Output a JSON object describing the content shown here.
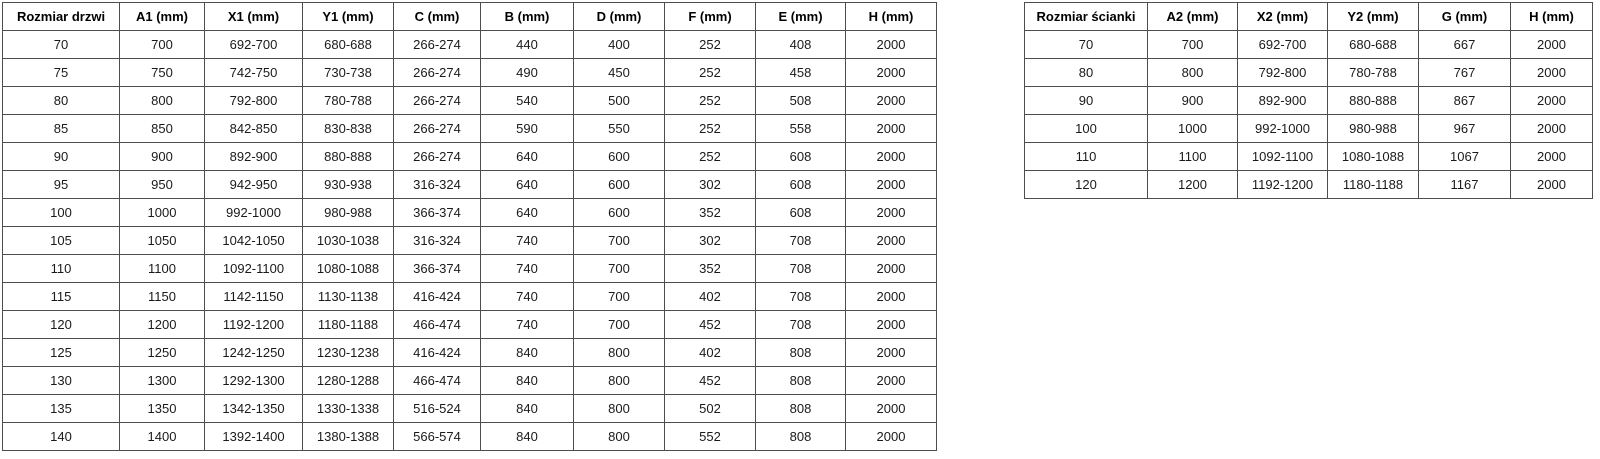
{
  "door_table": {
    "name": "Rozmiar drzwi",
    "headers": [
      "Rozmiar drzwi",
      "A1 (mm)",
      "X1 (mm)",
      "Y1 (mm)",
      "C (mm)",
      "B (mm)",
      "D (mm)",
      "F (mm)",
      "E (mm)",
      "H (mm)"
    ],
    "rows": [
      [
        "70",
        "700",
        "692-700",
        "680-688",
        "266-274",
        "440",
        "400",
        "252",
        "408",
        "2000"
      ],
      [
        "75",
        "750",
        "742-750",
        "730-738",
        "266-274",
        "490",
        "450",
        "252",
        "458",
        "2000"
      ],
      [
        "80",
        "800",
        "792-800",
        "780-788",
        "266-274",
        "540",
        "500",
        "252",
        "508",
        "2000"
      ],
      [
        "85",
        "850",
        "842-850",
        "830-838",
        "266-274",
        "590",
        "550",
        "252",
        "558",
        "2000"
      ],
      [
        "90",
        "900",
        "892-900",
        "880-888",
        "266-274",
        "640",
        "600",
        "252",
        "608",
        "2000"
      ],
      [
        "95",
        "950",
        "942-950",
        "930-938",
        "316-324",
        "640",
        "600",
        "302",
        "608",
        "2000"
      ],
      [
        "100",
        "1000",
        "992-1000",
        "980-988",
        "366-374",
        "640",
        "600",
        "352",
        "608",
        "2000"
      ],
      [
        "105",
        "1050",
        "1042-1050",
        "1030-1038",
        "316-324",
        "740",
        "700",
        "302",
        "708",
        "2000"
      ],
      [
        "110",
        "1100",
        "1092-1100",
        "1080-1088",
        "366-374",
        "740",
        "700",
        "352",
        "708",
        "2000"
      ],
      [
        "115",
        "1150",
        "1142-1150",
        "1130-1138",
        "416-424",
        "740",
        "700",
        "402",
        "708",
        "2000"
      ],
      [
        "120",
        "1200",
        "1192-1200",
        "1180-1188",
        "466-474",
        "740",
        "700",
        "452",
        "708",
        "2000"
      ],
      [
        "125",
        "1250",
        "1242-1250",
        "1230-1238",
        "416-424",
        "840",
        "800",
        "402",
        "808",
        "2000"
      ],
      [
        "130",
        "1300",
        "1292-1300",
        "1280-1288",
        "466-474",
        "840",
        "800",
        "452",
        "808",
        "2000"
      ],
      [
        "135",
        "1350",
        "1342-1350",
        "1330-1338",
        "516-524",
        "840",
        "800",
        "502",
        "808",
        "2000"
      ],
      [
        "140",
        "1400",
        "1392-1400",
        "1380-1388",
        "566-574",
        "840",
        "800",
        "552",
        "808",
        "2000"
      ]
    ]
  },
  "wall_table": {
    "name": "Rozmiar ścianki",
    "headers": [
      "Rozmiar ścianki",
      "A2 (mm)",
      "X2 (mm)",
      "Y2 (mm)",
      "G (mm)",
      "H (mm)"
    ],
    "rows": [
      [
        "70",
        "700",
        "692-700",
        "680-688",
        "667",
        "2000"
      ],
      [
        "80",
        "800",
        "792-800",
        "780-788",
        "767",
        "2000"
      ],
      [
        "90",
        "900",
        "892-900",
        "880-888",
        "867",
        "2000"
      ],
      [
        "100",
        "1000",
        "992-1000",
        "980-988",
        "967",
        "2000"
      ],
      [
        "110",
        "1100",
        "1092-1100",
        "1080-1088",
        "1067",
        "2000"
      ],
      [
        "120",
        "1200",
        "1192-1200",
        "1180-1188",
        "1167",
        "2000"
      ]
    ]
  },
  "colors": {
    "border": "#4d4d4d",
    "text": "#000000",
    "background": "#ffffff"
  }
}
